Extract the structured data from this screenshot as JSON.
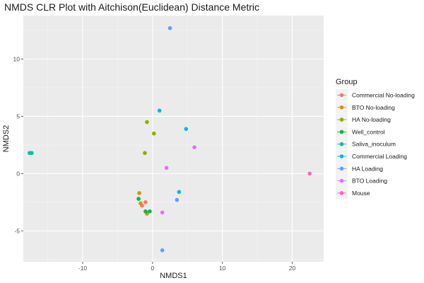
{
  "chart_data": {
    "type": "scatter",
    "title": "NMDS CLR Plot with Aitchison(Euclidean) Distance Metric",
    "xlabel": "NMDS1",
    "ylabel": "NMDS2",
    "xlim": [
      -18.5,
      24.5
    ],
    "ylim": [
      -7.7,
      13.8
    ],
    "x_ticks": [
      -10,
      0,
      10,
      20
    ],
    "x_tick_labels": [
      "-10",
      "0",
      "10",
      "20"
    ],
    "y_ticks": [
      -5,
      0,
      5,
      10
    ],
    "y_tick_labels": [
      "-5",
      "0",
      "5",
      "10"
    ],
    "grid": true,
    "background": "#ebebeb",
    "legend": {
      "title": "Group",
      "position": "right"
    },
    "series": [
      {
        "name": "Commercial No-loading",
        "color": "#F8766D",
        "points": [
          [
            -1.0,
            -2.5
          ],
          [
            -1.5,
            -2.8
          ]
        ]
      },
      {
        "name": "BTO No-loading",
        "color": "#D39200",
        "points": [
          [
            -1.9,
            -1.7
          ],
          [
            -0.8,
            -3.5
          ],
          [
            -1.7,
            -2.6
          ]
        ]
      },
      {
        "name": "HA No-loading",
        "color": "#93AA00",
        "points": [
          [
            -0.8,
            4.5
          ],
          [
            0.2,
            3.5
          ],
          [
            -1.1,
            1.8
          ]
        ]
      },
      {
        "name": "Well_control",
        "color": "#00BA38",
        "points": [
          [
            -2.0,
            -2.2
          ],
          [
            -1.0,
            -3.3
          ],
          [
            -0.4,
            -3.3
          ]
        ]
      },
      {
        "name": "Saliva_inoculum",
        "color": "#00C19F",
        "points": [
          [
            -17.6,
            1.8
          ],
          [
            -17.3,
            1.8
          ]
        ]
      },
      {
        "name": "Commercial Loading",
        "color": "#00B9E3",
        "points": [
          [
            1.0,
            5.5
          ],
          [
            4.8,
            3.9
          ],
          [
            3.8,
            -1.6
          ]
        ]
      },
      {
        "name": "HA Loading",
        "color": "#619CFF",
        "points": [
          [
            2.5,
            12.7
          ],
          [
            3.5,
            -2.3
          ],
          [
            1.4,
            -6.7
          ]
        ]
      },
      {
        "name": "BTO Loading",
        "color": "#DB72FB",
        "points": [
          [
            6.0,
            2.3
          ],
          [
            2.0,
            0.5
          ],
          [
            1.4,
            -3.4
          ]
        ]
      },
      {
        "name": "Mouse",
        "color": "#FF61C3",
        "points": [
          [
            22.5,
            0.0
          ]
        ]
      }
    ]
  }
}
